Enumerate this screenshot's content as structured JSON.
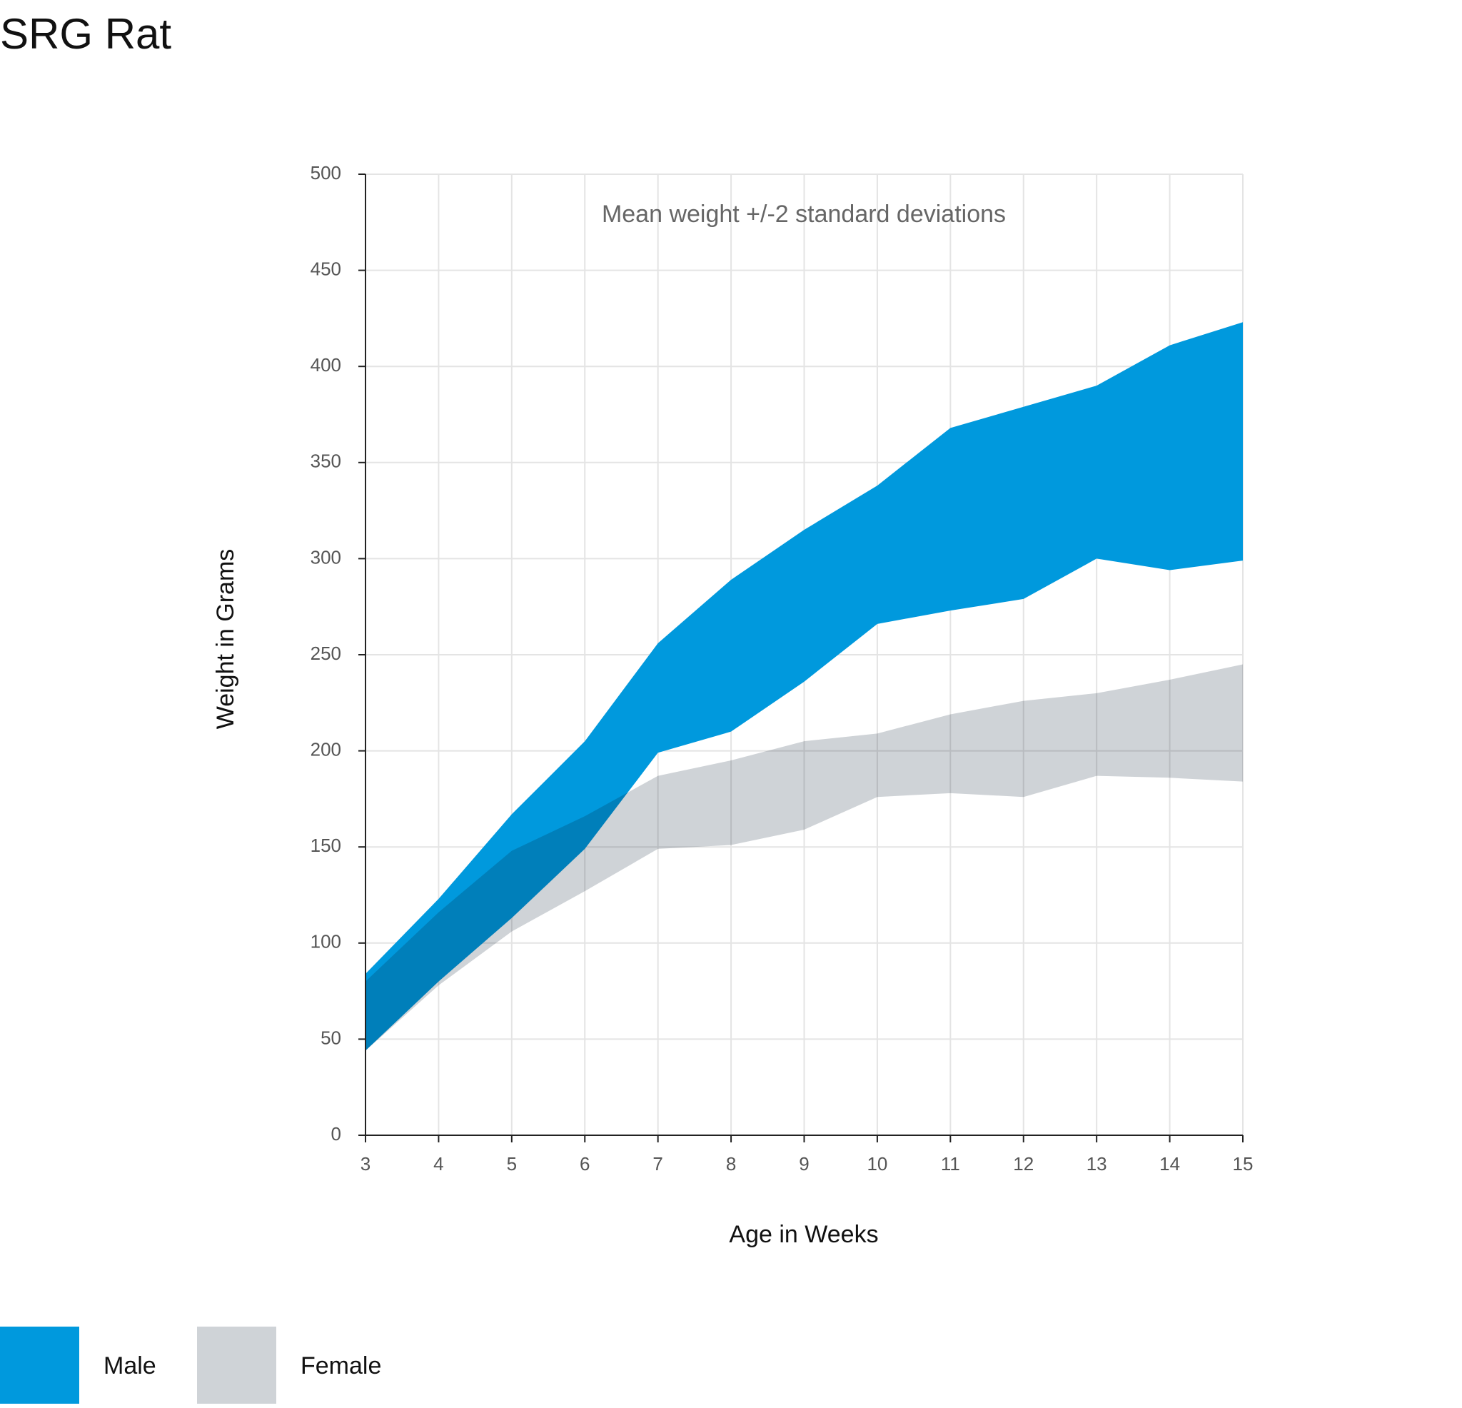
{
  "chart_data": {
    "type": "range-area",
    "title": "SRG Rat",
    "annotation": "Mean weight +/-2 standard deviations",
    "x_label": "Age in Weeks",
    "y_label": "Weight in Grams",
    "x": [
      3,
      4,
      5,
      6,
      7,
      8,
      9,
      10,
      11,
      12,
      13,
      14,
      15
    ],
    "series": [
      {
        "name": "Male",
        "color": "#0099dd",
        "upper": [
          84,
          123,
          167,
          205,
          256,
          289,
          315,
          338,
          368,
          379,
          390,
          411,
          423
        ],
        "lower": [
          44,
          80,
          113,
          149,
          199,
          210,
          236,
          266,
          273,
          279,
          300,
          294,
          299
        ]
      },
      {
        "name": "Female",
        "color": "#cfd3d7",
        "upper": [
          80,
          116,
          148,
          166,
          187,
          195,
          205,
          209,
          219,
          226,
          230,
          237,
          245
        ],
        "lower": [
          44,
          78,
          106,
          127,
          149,
          151,
          159,
          176,
          178,
          176,
          187,
          186,
          184
        ]
      }
    ],
    "xlim": [
      3,
      15
    ],
    "xticks": [
      3,
      4,
      5,
      6,
      7,
      8,
      9,
      10,
      11,
      12,
      13,
      14,
      15
    ],
    "ylim": [
      0,
      500
    ],
    "yticks": [
      0,
      50,
      100,
      150,
      200,
      250,
      300,
      350,
      400,
      450,
      500
    ],
    "grid": true
  }
}
